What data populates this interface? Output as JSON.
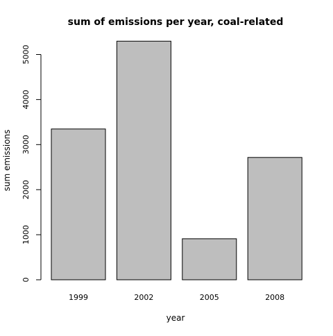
{
  "chart_data": {
    "type": "bar",
    "title": "sum of emissions per year, coal-related",
    "xlabel": "year",
    "ylabel": "sum emissions",
    "categories": [
      "1999",
      "2002",
      "2005",
      "2008"
    ],
    "values": [
      3346,
      5296,
      911,
      2715
    ],
    "ylim": [
      0,
      5300
    ],
    "yticks": [
      "0",
      "1000",
      "2000",
      "3000",
      "4000",
      "5000"
    ],
    "grid": false,
    "bar_color": "#bebebe",
    "bar_border_color": "#000000"
  }
}
